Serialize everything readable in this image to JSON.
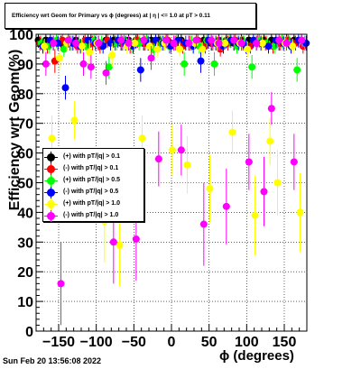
{
  "title": "Efficiency wrt Geom for Primary vs ϕ (degrees) at | η | <= 1.0 at pT > 0.11",
  "timestamp": "Sun Feb 20 13:56:08 2022",
  "chart_data": {
    "type": "scatter",
    "xlabel": "ϕ (degrees)",
    "ylabel": "Efficiency wrt Geom(%)",
    "xlim": [
      -180,
      180
    ],
    "ylim": [
      0,
      100
    ],
    "x_ticks": [
      "-150",
      "-100",
      "-50",
      "0",
      "50",
      "100",
      "150"
    ],
    "y_ticks": [
      "0",
      "10",
      "20",
      "30",
      "40",
      "50",
      "60",
      "70",
      "80",
      "90",
      "100"
    ],
    "grid": true,
    "legend_position": "left-middle",
    "series": [
      {
        "name": "(+) with pT/|q| > 0.1",
        "color": "#000000",
        "x": [
          -177,
          -167,
          -157,
          -147,
          -137,
          -127,
          -117,
          -107,
          -97,
          -87,
          -77,
          -67,
          -57,
          -47,
          -37,
          -27,
          -17,
          -7,
          3,
          13,
          23,
          33,
          43,
          53,
          63,
          73,
          83,
          93,
          103,
          113,
          123,
          133,
          143,
          153,
          163,
          173
        ],
        "y": [
          98,
          98,
          97,
          97,
          98,
          98,
          97,
          98,
          97,
          98,
          98,
          97,
          98,
          98,
          97,
          98,
          98,
          98,
          97,
          98,
          97,
          98,
          98,
          97,
          98,
          98,
          97,
          98,
          98,
          97,
          98,
          98,
          97,
          98,
          98,
          98
        ]
      },
      {
        "name": "(-) with pT/|q| > 0.1",
        "color": "#ff0000",
        "x": [
          -175,
          -165,
          -155,
          -145,
          -135,
          -125,
          -115,
          -105,
          -95,
          -85,
          -75,
          -65,
          -55,
          -45,
          -35,
          -25,
          -15,
          -5,
          5,
          15,
          25,
          35,
          45,
          55,
          65,
          75,
          85,
          95,
          105,
          115,
          125,
          135,
          145,
          155,
          165,
          175
        ],
        "y": [
          97,
          96,
          91,
          98,
          97,
          96,
          98,
          97,
          96,
          98,
          97,
          97,
          96,
          98,
          97,
          96,
          97,
          98,
          97,
          96,
          97,
          98,
          96,
          97,
          95,
          97,
          98,
          97,
          96,
          98,
          97,
          96,
          97,
          98,
          97,
          96
        ]
      },
      {
        "name": "(+) with pT/|q| > 0.5",
        "color": "#00ff00",
        "x": [
          -173,
          -163,
          -153,
          -143,
          -133,
          -123,
          -113,
          -103,
          -93,
          -83,
          -73,
          -63,
          -53,
          -43,
          -33,
          -23,
          -13,
          -3,
          7,
          17,
          27,
          37,
          47,
          57,
          67,
          77,
          87,
          97,
          107,
          117,
          127,
          137,
          147,
          157,
          167,
          177
        ],
        "y": [
          97,
          96,
          98,
          95,
          97,
          97,
          96,
          98,
          97,
          89,
          97,
          98,
          96,
          97,
          98,
          95,
          97,
          96,
          98,
          90,
          97,
          96,
          98,
          90,
          97,
          98,
          96,
          97,
          89,
          98,
          97,
          96,
          98,
          97,
          88,
          97
        ]
      },
      {
        "name": "(-) with pT/|q| > 0.5",
        "color": "#0000ff",
        "x": [
          -171,
          -161,
          -151,
          -141,
          -131,
          -121,
          -111,
          -101,
          -91,
          -81,
          -71,
          -61,
          -51,
          -41,
          -31,
          -21,
          -11,
          -1,
          9,
          19,
          29,
          39,
          49,
          59,
          69,
          79,
          89,
          99,
          109,
          119,
          129,
          139,
          149,
          159,
          169,
          179
        ],
        "y": [
          96,
          98,
          97,
          82,
          97,
          96,
          98,
          97,
          96,
          97,
          98,
          97,
          96,
          88,
          97,
          98,
          97,
          96,
          98,
          97,
          96,
          91,
          98,
          97,
          96,
          98,
          97,
          96,
          98,
          97,
          96,
          98,
          97,
          96,
          98,
          97
        ]
      },
      {
        "name": "(+) with pT/|q| > 1.0",
        "color": "#ffff00",
        "x": [
          -169,
          -159,
          -149,
          -139,
          -129,
          -119,
          -109,
          -99,
          -89,
          -79,
          -69,
          -59,
          -49,
          -39,
          -29,
          -19,
          -9,
          1,
          11,
          21,
          31,
          41,
          51,
          61,
          71,
          81,
          91,
          101,
          111,
          121,
          131,
          141,
          151,
          161,
          171
        ],
        "y": [
          96,
          65,
          92,
          97,
          71,
          96,
          94,
          97,
          37,
          93,
          29,
          96,
          97,
          65,
          96,
          95,
          97,
          61,
          95,
          56,
          97,
          95,
          48,
          97,
          97,
          67,
          97,
          95,
          39,
          97,
          64,
          50,
          97,
          96,
          40
        ]
      },
      {
        "name": "(-) with pT/|q| > 1.0",
        "color": "#ff00ff",
        "x": [
          -167,
          -157,
          -147,
          -137,
          -127,
          -117,
          -107,
          -97,
          -87,
          -77,
          -67,
          -57,
          -47,
          -37,
          -27,
          -17,
          -7,
          3,
          13,
          23,
          33,
          43,
          53,
          63,
          73,
          83,
          93,
          103,
          113,
          123,
          133,
          143,
          153,
          163,
          173
        ],
        "y": [
          90,
          97,
          16,
          98,
          97,
          90,
          89,
          97,
          87,
          30,
          98,
          97,
          31,
          98,
          92,
          58,
          98,
          97,
          61,
          97,
          98,
          36,
          98,
          97,
          42,
          98,
          97,
          57,
          97,
          47,
          75,
          98,
          97,
          57,
          98
        ]
      }
    ]
  }
}
